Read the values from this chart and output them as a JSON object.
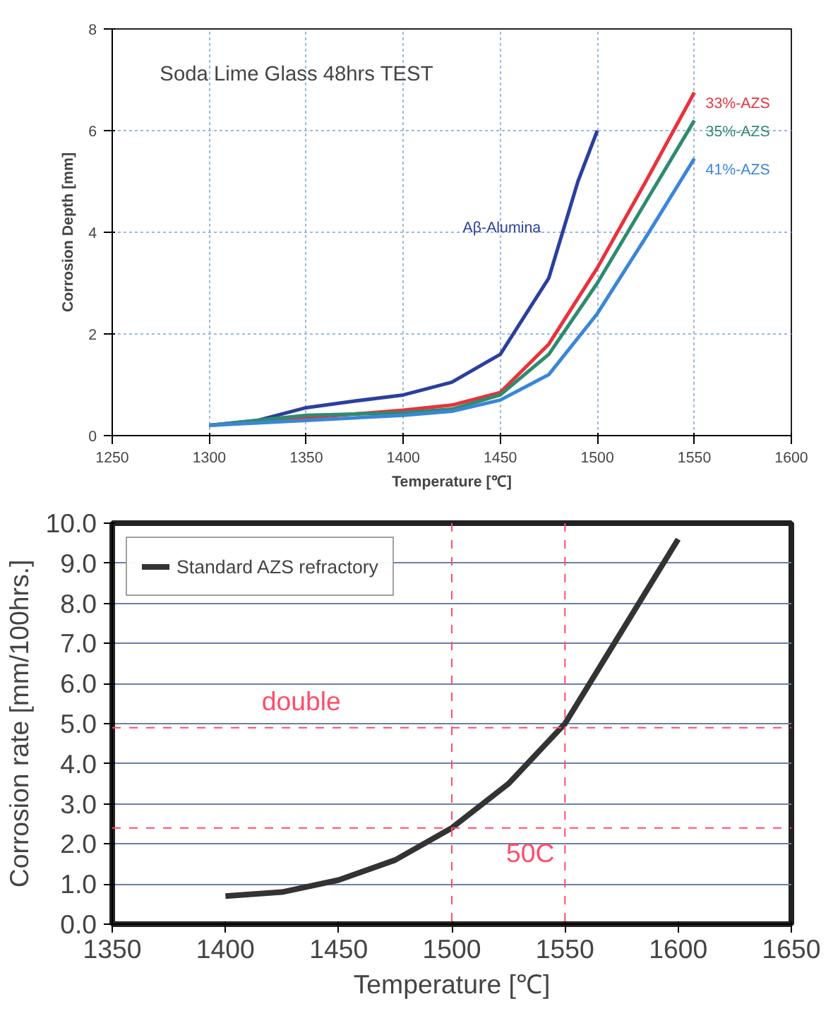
{
  "chart_data": [
    {
      "type": "line",
      "title": "Soda Lime Glass 48hrs TEST",
      "xlabel": "Temperature [℃]",
      "ylabel": "Corrosion Depth [mm]",
      "xlim": [
        1250,
        1600
      ],
      "ylim": [
        0,
        8
      ],
      "xticks": [
        1250,
        1300,
        1350,
        1400,
        1450,
        1500,
        1550,
        1600
      ],
      "yticks": [
        0,
        2,
        4,
        6,
        8
      ],
      "grid": true,
      "legend": false,
      "series": [
        {
          "name": "Aβ-Alumina",
          "color": "#2b3f9e",
          "x": [
            1300,
            1325,
            1350,
            1375,
            1400,
            1425,
            1450,
            1475,
            1490,
            1500
          ],
          "values": [
            0.2,
            0.3,
            0.55,
            0.68,
            0.8,
            1.05,
            1.6,
            3.1,
            5.0,
            6.0
          ]
        },
        {
          "name": "33%-AZS",
          "color": "#e8323c",
          "x": [
            1300,
            1350,
            1400,
            1425,
            1450,
            1475,
            1500,
            1525,
            1550
          ],
          "values": [
            0.2,
            0.35,
            0.5,
            0.6,
            0.85,
            1.8,
            3.3,
            5.0,
            6.75
          ]
        },
        {
          "name": "35%-AZS",
          "color": "#2e8b6e",
          "x": [
            1300,
            1350,
            1400,
            1425,
            1450,
            1475,
            1500,
            1525,
            1550
          ],
          "values": [
            0.2,
            0.4,
            0.45,
            0.52,
            0.8,
            1.6,
            3.0,
            4.6,
            6.2
          ]
        },
        {
          "name": "41%-AZS",
          "color": "#3a86d8",
          "x": [
            1300,
            1350,
            1400,
            1425,
            1450,
            1475,
            1500,
            1525,
            1550
          ],
          "values": [
            0.2,
            0.3,
            0.4,
            0.48,
            0.7,
            1.2,
            2.4,
            3.9,
            5.45
          ]
        }
      ]
    },
    {
      "type": "line",
      "xlabel": "Temperature [℃]",
      "ylabel": "Corrosion rate [mm/100hrs.]",
      "xlim": [
        1350,
        1650
      ],
      "ylim": [
        0,
        10
      ],
      "xticks": [
        1350,
        1400,
        1450,
        1500,
        1550,
        1600,
        1650
      ],
      "yticks": [
        {
          "value": 0,
          "label": "0.0"
        },
        {
          "value": 1,
          "label": "1.0"
        },
        {
          "value": 2,
          "label": "2.0"
        },
        {
          "value": 3,
          "label": "3.0"
        },
        {
          "value": 4,
          "label": "4.0"
        },
        {
          "value": 5,
          "label": "5.0"
        },
        {
          "value": 6,
          "label": "6.0"
        },
        {
          "value": 7,
          "label": "7.0"
        },
        {
          "value": 8,
          "label": "8.0"
        },
        {
          "value": 9,
          "label": "9.0"
        },
        {
          "value": 10,
          "label": "10.0"
        }
      ],
      "grid": "y",
      "legend": "top left",
      "series": [
        {
          "name": "Standard AZS refractory",
          "color": "#333333",
          "x": [
            1400,
            1425,
            1450,
            1475,
            1500,
            1525,
            1550,
            1575,
            1600
          ],
          "values": [
            0.7,
            0.8,
            1.1,
            1.6,
            2.4,
            3.5,
            5.0,
            7.3,
            9.6
          ]
        }
      ],
      "ref_lines": [
        {
          "axis": "y",
          "value": 2.4,
          "color": "#ff4d6a",
          "line_style": "dashed"
        },
        {
          "axis": "y",
          "value": 4.9,
          "color": "#ff4d6a",
          "line_style": "dashed"
        },
        {
          "axis": "x",
          "value": 1500,
          "color": "#ff4d6a",
          "line_style": "dashed"
        },
        {
          "axis": "x",
          "value": 1550,
          "color": "#ff4d6a",
          "line_style": "dashed"
        }
      ],
      "annotations": [
        "double",
        "50C"
      ]
    }
  ]
}
